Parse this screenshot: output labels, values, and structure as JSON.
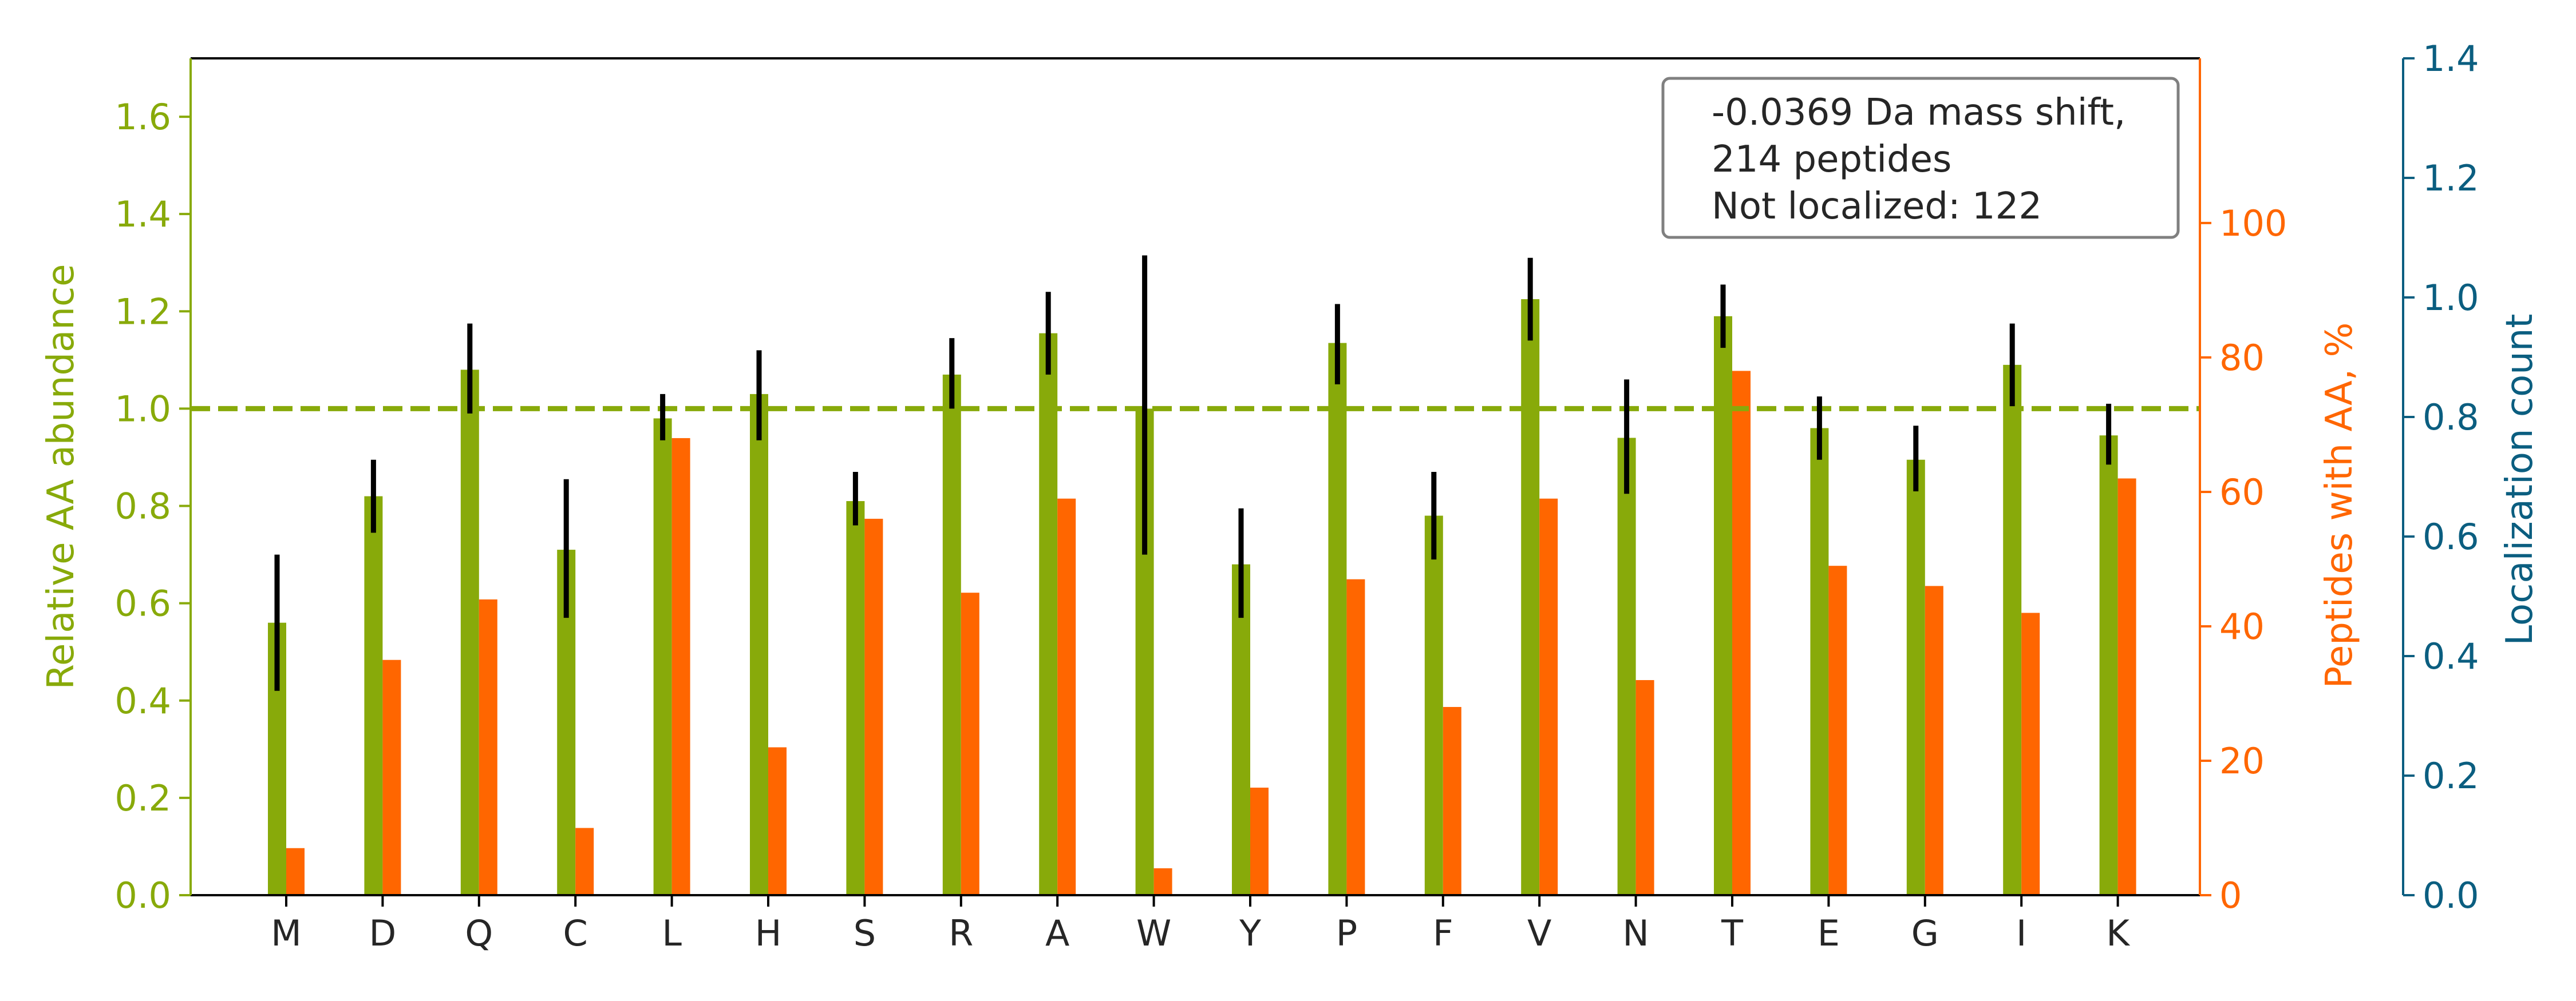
{
  "chart_data": {
    "type": "bar",
    "categories": [
      "M",
      "D",
      "Q",
      "C",
      "L",
      "H",
      "S",
      "R",
      "A",
      "W",
      "Y",
      "P",
      "F",
      "V",
      "N",
      "T",
      "E",
      "G",
      "I",
      "K"
    ],
    "series": [
      {
        "axis": "left",
        "color": "#88aa0a",
        "values": [
          0.56,
          0.82,
          1.08,
          0.71,
          0.98,
          1.03,
          0.81,
          1.07,
          1.155,
          1.0,
          0.68,
          1.135,
          0.78,
          1.225,
          0.94,
          1.19,
          0.96,
          0.895,
          1.09,
          0.945
        ],
        "error_low": [
          0.42,
          0.745,
          0.99,
          0.57,
          0.935,
          0.935,
          0.76,
          1.0,
          1.07,
          0.7,
          0.57,
          1.05,
          0.69,
          1.14,
          0.825,
          1.125,
          0.895,
          0.83,
          1.005,
          0.885
        ],
        "error_high": [
          0.7,
          0.895,
          1.175,
          0.855,
          1.03,
          1.12,
          0.87,
          1.145,
          1.24,
          1.315,
          0.795,
          1.215,
          0.87,
          1.31,
          1.06,
          1.255,
          1.025,
          0.965,
          1.175,
          1.01
        ]
      },
      {
        "axis": "right",
        "color": "#ff6600",
        "values": [
          7,
          35,
          44,
          10,
          68,
          22,
          56,
          45,
          59,
          4,
          16,
          47,
          28,
          59,
          32,
          78,
          49,
          46,
          42,
          62
        ]
      }
    ],
    "ylabel_left": "Relative AA abundance",
    "ylabel_right": "Peptides with AA, %",
    "ylabel_far_right": "Localization count",
    "ylim_left": [
      0,
      1.72
    ],
    "ylim_right": [
      0,
      124.5
    ],
    "ylim_far_right": [
      0,
      1.4
    ],
    "yticks_left": [
      "0.0",
      "0.2",
      "0.4",
      "0.6",
      "0.8",
      "1.0",
      "1.2",
      "1.4",
      "1.6"
    ],
    "yticks_right": [
      "0",
      "20",
      "40",
      "60",
      "80",
      "100"
    ],
    "yticks_far_right": [
      "0.0",
      "0.2",
      "0.4",
      "0.6",
      "0.8",
      "1.0",
      "1.2",
      "1.4"
    ],
    "reference_line": {
      "axis": "left",
      "y": 1.0,
      "color": "#88aa0a",
      "style": "dashed"
    },
    "left_axis_color": "#88aa0a",
    "right_axis_color": "#ff6600",
    "far_right_axis_color": "#0b5e80",
    "legend": {
      "placement": "top-right",
      "lines": [
        "-0.0369 Da mass shift,",
        "214 peptides",
        "Not localized: 122"
      ]
    },
    "grid": false
  }
}
